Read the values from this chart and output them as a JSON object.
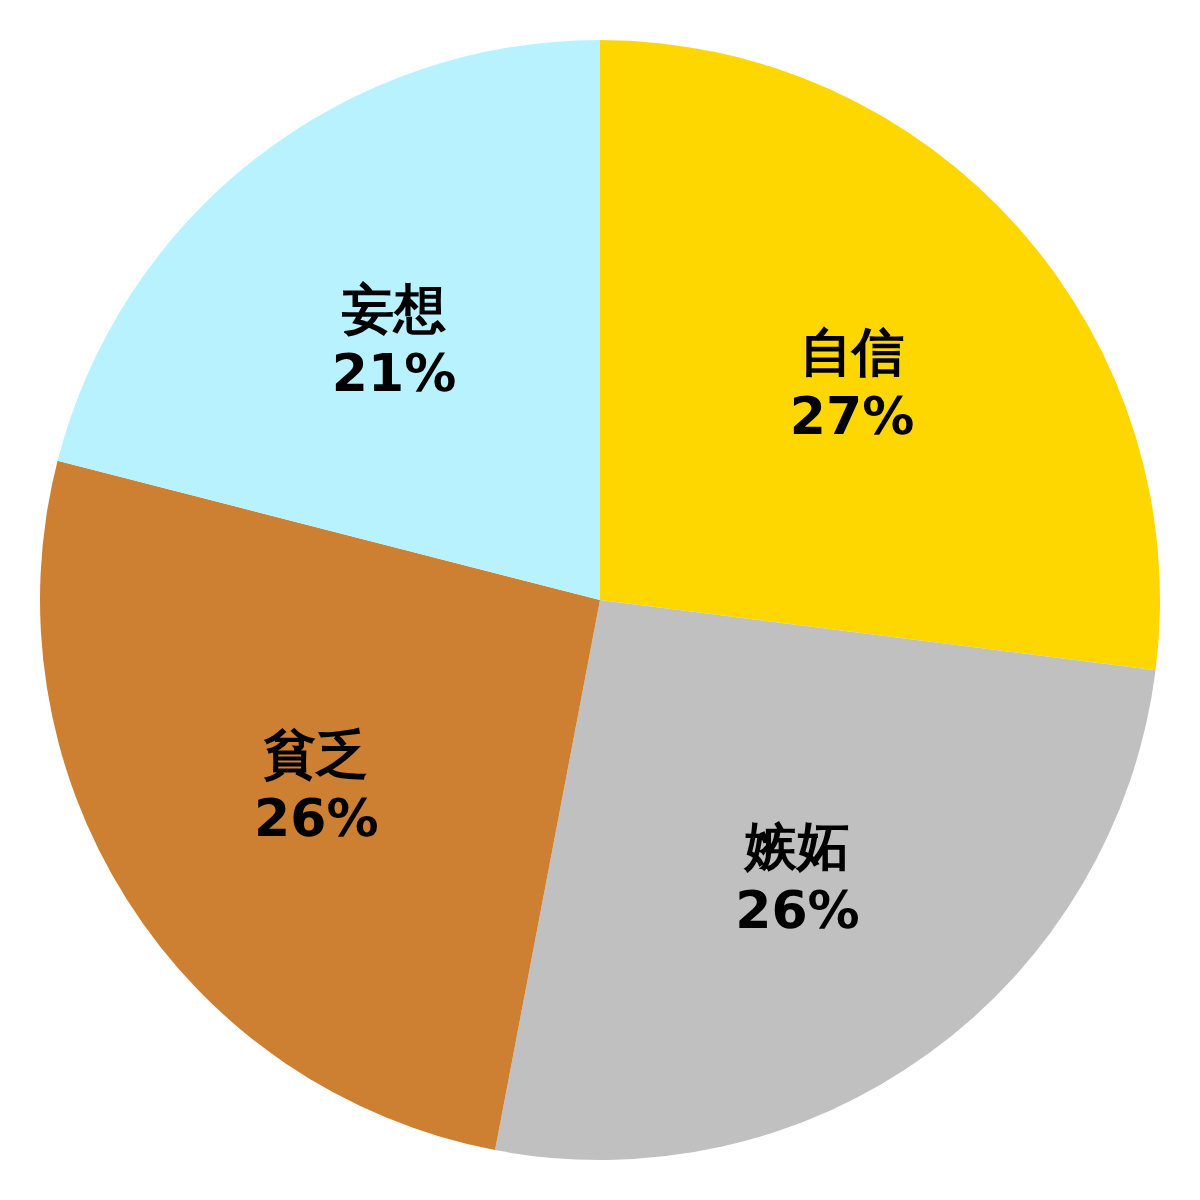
{
  "chart_data": {
    "type": "pie",
    "categories": [
      "自信",
      "嫉妬",
      "貧乏",
      "妄想"
    ],
    "values": [
      27,
      26,
      26,
      21
    ],
    "colors": [
      "#ffd700",
      "#c0c0c0",
      "#cd7f32",
      "#b9f2ff"
    ],
    "value_labels": [
      "27%",
      "26%",
      "26%",
      "21%"
    ]
  }
}
